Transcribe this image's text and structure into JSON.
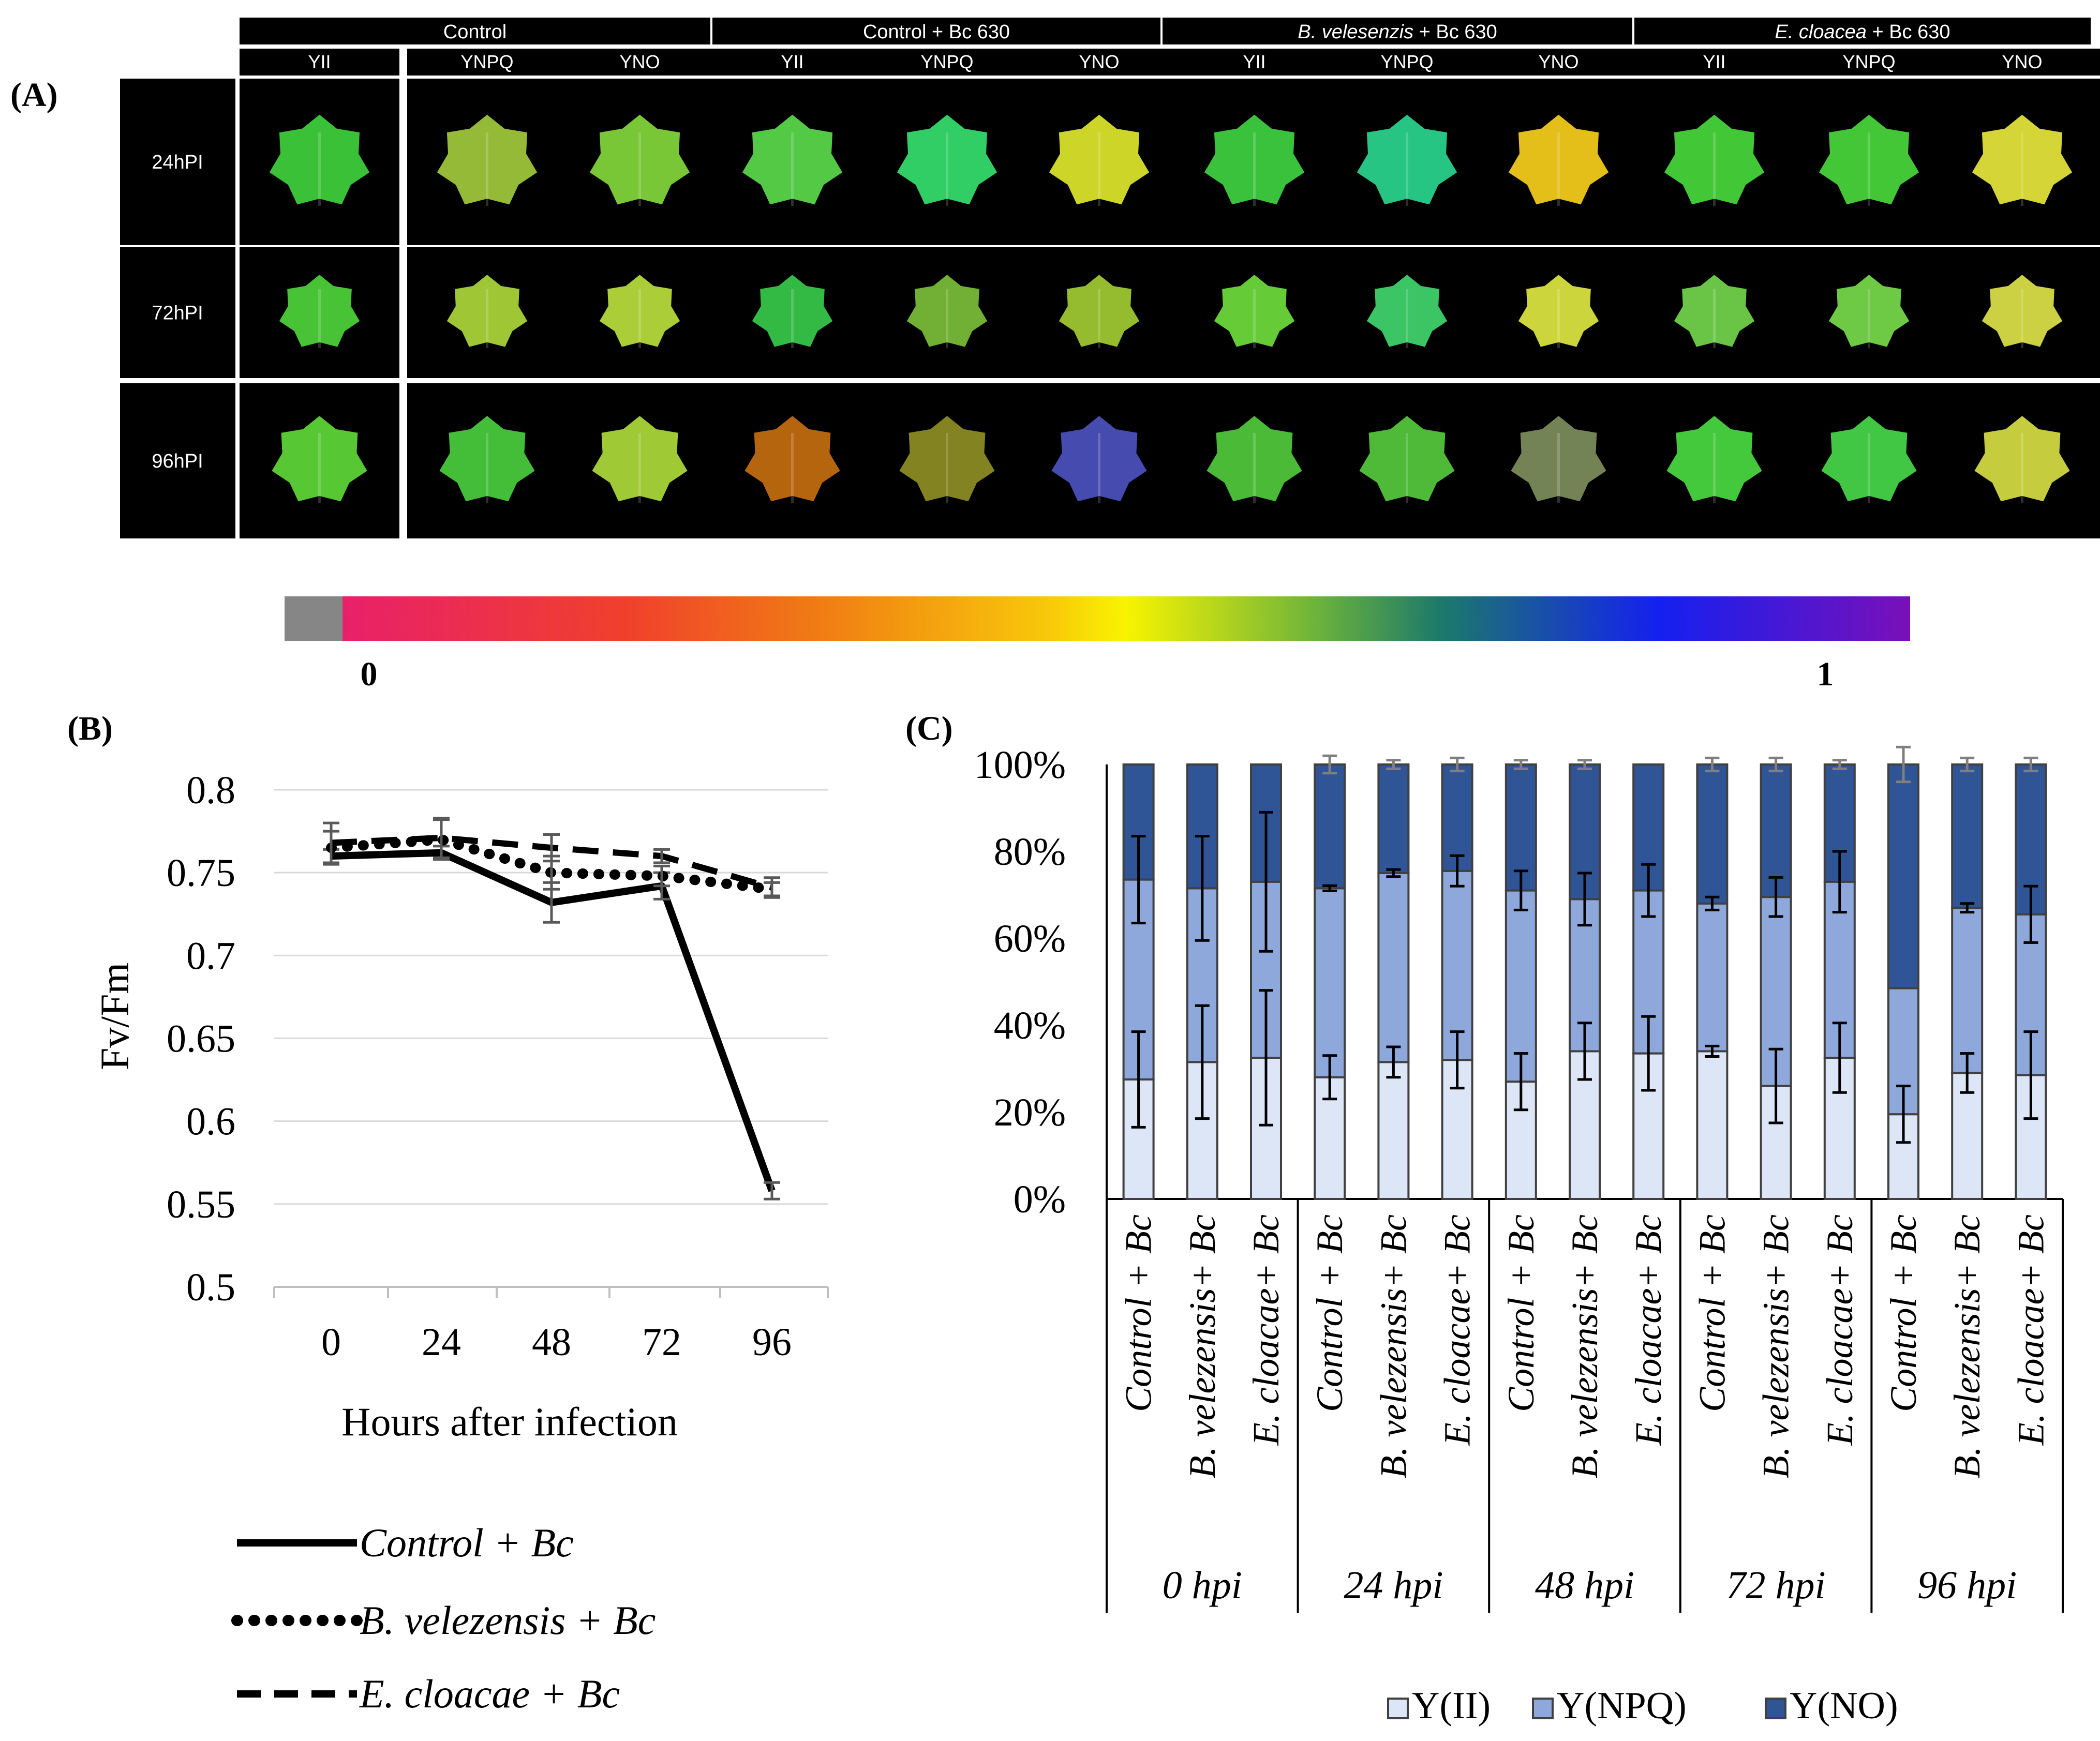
{
  "panel_labels": {
    "A": "(A)",
    "B": "(B)",
    "C": "(C)"
  },
  "panel_a": {
    "groups": [
      {
        "label": "Control",
        "italic_part": "",
        "rest": ""
      },
      {
        "label": "Control + Bc 630",
        "italic_part": "",
        "rest": ""
      },
      {
        "label": "",
        "italic_part": "B. velesenzis",
        "rest": " + Bc 630"
      },
      {
        "label": "",
        "italic_part": "E. cloacea",
        "rest": " + Bc 630"
      }
    ],
    "subcolumns": [
      "YII",
      "YNPQ",
      "YNO"
    ],
    "rows": [
      "24hPI",
      "72hPI",
      "96hPI"
    ],
    "colorbar": {
      "min_label": "0",
      "max_label": "1"
    },
    "leaf_colors": [
      [
        "#3ecb3a",
        "#9cc43a",
        "#7fd23a",
        "#58d44a",
        "#34d86a",
        "#d8e22a",
        "#3ecc40",
        "#28d08a",
        "#f0c81a",
        "#46d23a",
        "#48d23a",
        "#e0e03a"
      ],
      [
        "#4ccd38",
        "#a8d238",
        "#b4d83a",
        "#36c448",
        "#78b838",
        "#9cc630",
        "#6ad63a",
        "#3ed06a",
        "#d8e040",
        "#70d04a",
        "#74d448",
        "#d6dc46"
      ],
      [
        "#5cd236",
        "#48c83c",
        "#a8d438",
        "#c06a10",
        "#8a8a24",
        "#4a50b8",
        "#4ec43a",
        "#52c43a",
        "#7a8a5a",
        "#48d440",
        "#44d248",
        "#d0d842"
      ]
    ]
  },
  "panel_b": {
    "chart_data": {
      "type": "line",
      "x": [
        0,
        24,
        48,
        72,
        96
      ],
      "xlabel": "Hours after infection",
      "ylabel": "Fv/Fm",
      "ylim": [
        0.5,
        0.8
      ],
      "yticks": [
        "0.5",
        "0.55",
        "0.6",
        "0.65",
        "0.7",
        "0.75",
        "0.8"
      ],
      "xticks": [
        "0",
        "24",
        "48",
        "72",
        "96"
      ],
      "series": [
        {
          "name": "Control + Bc",
          "style": "solid",
          "values": [
            0.76,
            0.762,
            0.732,
            0.742,
            0.558
          ],
          "errors": [
            0.004,
            0.004,
            0.012,
            0.008,
            0.005
          ]
        },
        {
          "name": "B. velezensis + Bc",
          "style": "dotted",
          "values": [
            0.765,
            0.77,
            0.75,
            0.748,
            0.74
          ],
          "errors": [
            0.01,
            0.012,
            0.01,
            0.006,
            0.004
          ]
        },
        {
          "name": "E. cloacae + Bc",
          "style": "dashed",
          "values": [
            0.768,
            0.771,
            0.765,
            0.76,
            0.741
          ],
          "errors": [
            0.012,
            0.012,
            0.008,
            0.004,
            0.006
          ]
        }
      ],
      "legend": [
        "Control + Bc",
        "B. velezensis + Bc",
        "E. cloacae + Bc"
      ]
    }
  },
  "panel_c": {
    "chart_data": {
      "type": "bar",
      "stacked": true,
      "ylim": [
        0,
        100
      ],
      "yticks": [
        "0%",
        "20%",
        "40%",
        "60%",
        "80%",
        "100%"
      ],
      "categories": [
        "Control + Bc",
        "B. velezensis+ Bc",
        "E. cloacae+ Bc",
        "Control + Bc",
        "B. velezensis+ Bc",
        "E. cloacae+ Bc",
        "Control + Bc",
        "B. velezensis+ Bc",
        "E. cloacae+ Bc",
        "Control + Bc",
        "B. velezensis+ Bc",
        "E. cloacae+ Bc",
        "Control + Bc",
        "B. velezensis+ Bc",
        "E. cloacae+ Bc"
      ],
      "groups": [
        "0 hpi",
        "24 hpi",
        "48 hpi",
        "72 hpi",
        "96 hpi"
      ],
      "series": [
        {
          "name": "Y(II)",
          "color": "#dce6f6",
          "values": [
            27.5,
            31.5,
            32.5,
            28,
            31.5,
            32,
            27,
            34,
            33.5,
            34,
            26,
            32.5,
            19.5,
            29,
            28.5
          ],
          "errors": [
            11,
            13,
            15.5,
            5,
            3.5,
            6.5,
            6.5,
            6.5,
            8.5,
            1.2,
            8.5,
            8,
            6.5,
            4.5,
            10
          ]
        },
        {
          "name": "Y(NPQ)",
          "color": "#8fa8dc",
          "values": [
            46,
            40,
            40.5,
            43.5,
            43.5,
            43.5,
            44,
            35,
            37.5,
            34,
            43.5,
            40.5,
            29,
            38,
            37
          ],
          "errors": [
            10,
            12,
            16,
            0.6,
            0.8,
            3.5,
            4.5,
            6,
            6,
            1.5,
            4.5,
            7,
            0,
            1,
            6.5
          ]
        },
        {
          "name": "Y(NO)",
          "color": "#2f5597",
          "values": [
            26.5,
            28.5,
            27,
            28.5,
            25,
            24.5,
            29,
            31,
            29,
            32,
            30.5,
            27,
            51.5,
            33,
            34.5
          ],
          "errors": [
            0,
            0,
            0,
            2,
            1,
            1.5,
            1,
            1,
            0,
            1.5,
            1.5,
            1,
            4,
            1.5,
            1.5
          ]
        }
      ],
      "legend": [
        "Y(II)",
        "Y(NPQ)",
        "Y(NO)"
      ]
    }
  }
}
